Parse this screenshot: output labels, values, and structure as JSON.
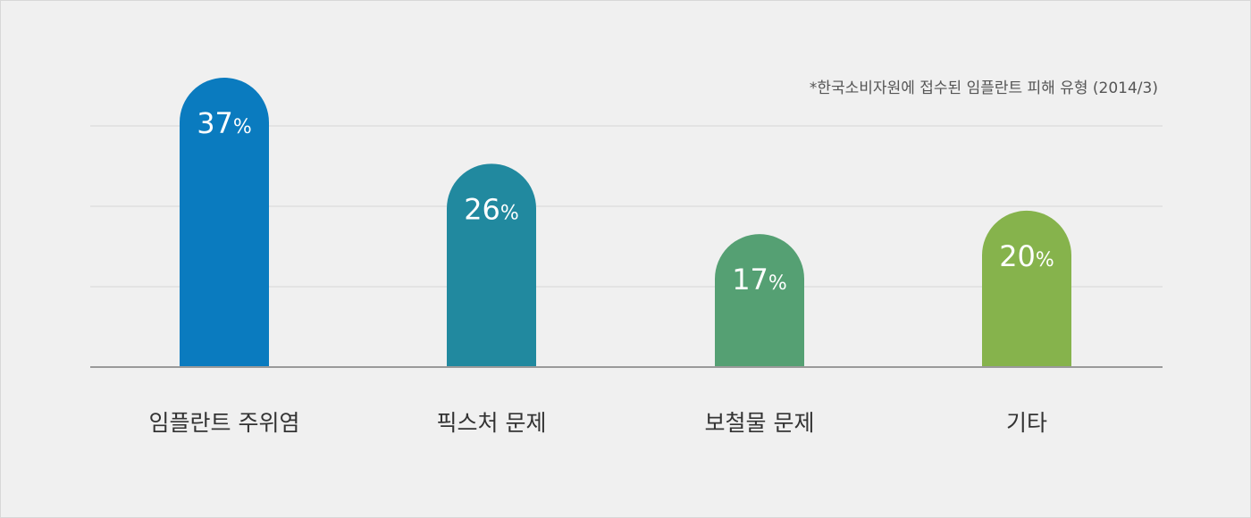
{
  "chart_data": {
    "type": "bar",
    "title": "",
    "note": "*한국소비자원에 접수된 임플란트 피해 유형 (2014/3)",
    "categories": [
      "임플란트 주위염",
      "픽스처 문제",
      "보철물 문제",
      "기타"
    ],
    "values": [
      37,
      26,
      17,
      20
    ],
    "value_unit": "%",
    "xlabel": "",
    "ylabel": "",
    "ylim": [
      0,
      37
    ],
    "grid": true,
    "bar_colors": [
      "#0a7bbf",
      "#21899f",
      "#55a073",
      "#86b34c"
    ]
  }
}
